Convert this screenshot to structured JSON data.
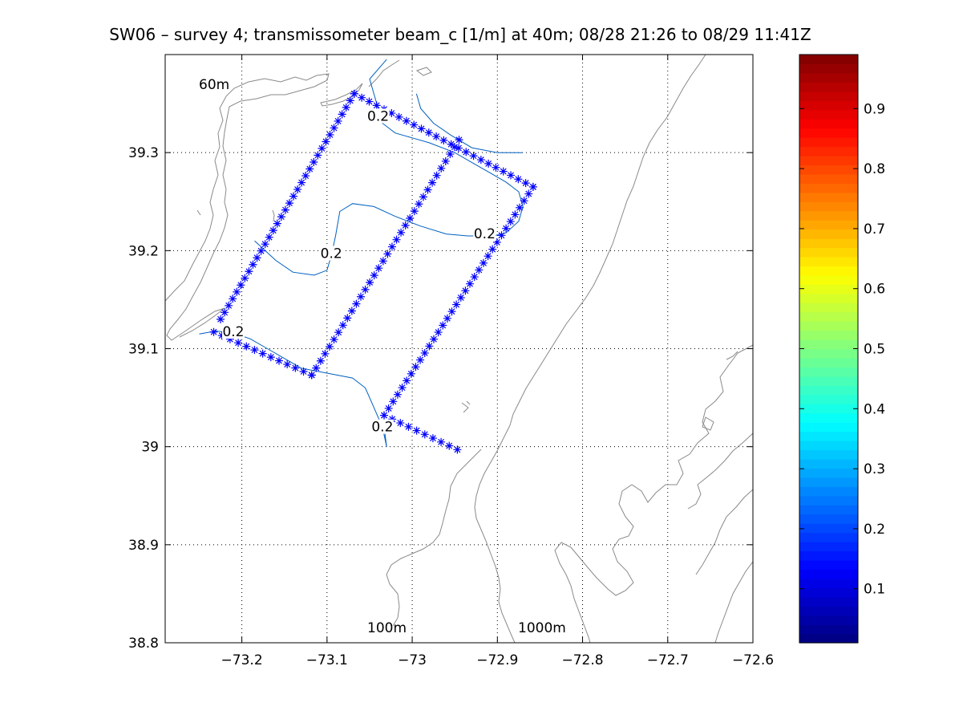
{
  "figure": {
    "title": "SW06 – survey 4; transmissometer beam_c [1/m] at 40m; 08/28 21:26 to 08/29 11:41Z",
    "annotations": [
      "60m",
      "100m",
      "1000m"
    ]
  },
  "chart_data": {
    "type": "scatter",
    "title": "SW06 – survey 4; transmissometer beam_c [1/m] at 40m; 08/28 21:26 to 08/29 11:41Z",
    "xlabel": "",
    "ylabel": "",
    "xlim": [
      -73.29,
      -72.6
    ],
    "ylim": [
      38.8,
      39.4
    ],
    "xticks": [
      -73.2,
      -73.1,
      -73.0,
      -72.9,
      -72.8,
      -72.7,
      -72.6
    ],
    "xtick_labels": [
      "−73.2",
      "−73.1",
      "−73",
      "−72.9",
      "−72.8",
      "−72.7",
      "−72.6"
    ],
    "yticks": [
      38.8,
      38.9,
      39.0,
      39.1,
      39.2,
      39.3
    ],
    "ytick_labels": [
      "38.8",
      "38.9",
      "39",
      "39.1",
      "39.2",
      "39.3"
    ],
    "grid": true,
    "marker_color": "#0000ff",
    "contour_color": "#0060c0",
    "isobath_color": "#8a8a8a",
    "survey_track": {
      "marker": "asterisk",
      "legs": [
        {
          "start": [
            -73.225,
            39.13
          ],
          "end": [
            -73.068,
            39.36
          ],
          "n": 34
        },
        {
          "start": [
            -73.068,
            39.36
          ],
          "end": [
            -72.858,
            39.265
          ],
          "n": 25
        },
        {
          "start": [
            -72.858,
            39.265
          ],
          "end": [
            -73.033,
            39.032
          ],
          "n": 34
        },
        {
          "start": [
            -73.033,
            39.032
          ],
          "end": [
            -72.947,
            38.997
          ],
          "n": 10
        },
        {
          "start": [
            -72.945,
            39.313
          ],
          "end": [
            -73.118,
            39.073
          ],
          "n": 34
        },
        {
          "start": [
            -73.118,
            39.073
          ],
          "end": [
            -73.233,
            39.117
          ],
          "n": 13
        }
      ]
    },
    "contours": [
      {
        "level": 0.2,
        "label": "0.2",
        "label_at": [
          -73.21,
          39.115
        ],
        "points": [
          [
            -73.25,
            39.115
          ],
          [
            -73.23,
            39.118
          ],
          [
            -73.21,
            39.116
          ],
          [
            -73.19,
            39.11
          ],
          [
            -73.17,
            39.1
          ],
          [
            -73.15,
            39.09
          ],
          [
            -73.13,
            39.08
          ],
          [
            -73.1,
            39.075
          ],
          [
            -73.07,
            39.07
          ],
          [
            -73.055,
            39.06
          ],
          [
            -73.045,
            39.04
          ],
          [
            -73.035,
            39.02
          ],
          [
            -73.03,
            39.0
          ]
        ]
      },
      {
        "level": 0.2,
        "label": "0.2",
        "label_at": [
          -73.035,
          39.018
        ],
        "points": [
          [
            -73.03,
            39.0
          ],
          [
            -73.033,
            39.02
          ]
        ]
      },
      {
        "level": 0.2,
        "label": "0.2",
        "label_at": [
          -73.095,
          39.195
        ],
        "points": [
          [
            -73.185,
            39.21
          ],
          [
            -73.16,
            39.19
          ],
          [
            -73.14,
            39.178
          ],
          [
            -73.115,
            39.175
          ],
          [
            -73.1,
            39.18
          ],
          [
            -73.095,
            39.195
          ],
          [
            -73.09,
            39.215
          ],
          [
            -73.085,
            39.24
          ],
          [
            -73.07,
            39.248
          ],
          [
            -73.045,
            39.245
          ],
          [
            -73.02,
            39.235
          ],
          [
            -72.99,
            39.225
          ],
          [
            -72.96,
            39.217
          ],
          [
            -72.935,
            39.215
          ],
          [
            -72.92,
            39.215
          ]
        ]
      },
      {
        "level": 0.2,
        "label": "0.2",
        "label_at": [
          -72.915,
          39.215
        ],
        "points": [
          [
            -72.905,
            39.215
          ],
          [
            -72.89,
            39.218
          ],
          [
            -72.875,
            39.23
          ],
          [
            -72.87,
            39.245
          ],
          [
            -72.875,
            39.26
          ],
          [
            -72.89,
            39.27
          ],
          [
            -72.91,
            39.28
          ],
          [
            -72.93,
            39.29
          ],
          [
            -72.95,
            39.3
          ],
          [
            -72.98,
            39.31
          ],
          [
            -73.0,
            39.315
          ],
          [
            -73.02,
            39.32
          ],
          [
            -73.035,
            39.33
          ],
          [
            -73.04,
            39.345
          ]
        ]
      },
      {
        "level": 0.2,
        "label": "0.2",
        "label_at": [
          -73.04,
          39.335
        ],
        "points": [
          [
            -73.04,
            39.345
          ],
          [
            -73.045,
            39.36
          ],
          [
            -73.05,
            39.375
          ],
          [
            -73.03,
            39.395
          ]
        ]
      },
      {
        "level": 0.2,
        "label": "",
        "label_at": [
          -72.98,
          39.33
        ],
        "points": [
          [
            -72.995,
            39.36
          ],
          [
            -72.99,
            39.345
          ],
          [
            -72.975,
            39.33
          ],
          [
            -72.955,
            39.318
          ],
          [
            -72.93,
            39.305
          ],
          [
            -72.9,
            39.3
          ],
          [
            -72.87,
            39.3
          ]
        ]
      }
    ],
    "colorbar": {
      "colormap": "jet",
      "range": [
        0.01,
        0.99
      ],
      "ticks": [
        0.1,
        0.2,
        0.3,
        0.4,
        0.5,
        0.6,
        0.7,
        0.8,
        0.9
      ],
      "tick_labels": [
        "0.1",
        "0.2",
        "0.3",
        "0.4",
        "0.5",
        "0.6",
        "0.7",
        "0.8",
        "0.9"
      ],
      "levels": 64
    }
  }
}
